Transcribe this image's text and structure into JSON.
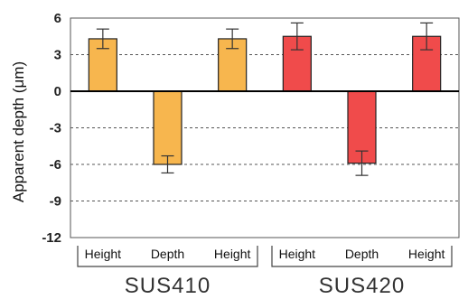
{
  "chart_data": {
    "type": "bar",
    "ylabel": "Apparent depth (μm)",
    "ylim": [
      -12,
      6
    ],
    "yticks": [
      6,
      3,
      0,
      -3,
      -6,
      -9,
      -12
    ],
    "grid": "dashed horizontal",
    "groups": [
      {
        "name": "SUS410",
        "color": "#f7b64e",
        "categories": [
          "Height",
          "Depth",
          "Height"
        ],
        "values": [
          4.3,
          -6.0,
          4.3
        ],
        "errors": [
          0.8,
          0.7,
          0.8
        ]
      },
      {
        "name": "SUS420",
        "color": "#f04b4b",
        "categories": [
          "Height",
          "Depth",
          "Height"
        ],
        "values": [
          4.5,
          -5.9,
          4.5
        ],
        "errors": [
          1.1,
          1.0,
          1.1
        ]
      }
    ]
  }
}
